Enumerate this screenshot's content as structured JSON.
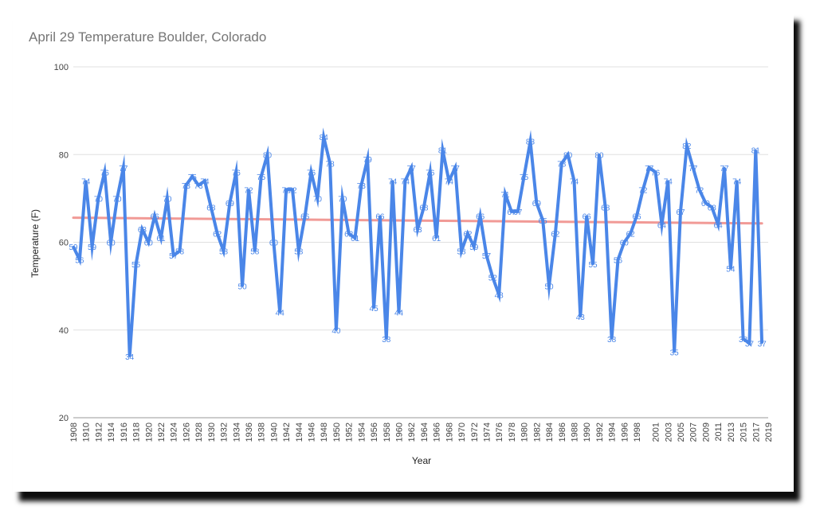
{
  "chart_data": {
    "type": "line",
    "title": "April 29 Temperature Boulder, Colorado",
    "xlabel": "Year",
    "ylabel": "Temperature (F)",
    "ylim": [
      20,
      100
    ],
    "yticks": [
      20,
      40,
      60,
      80,
      100
    ],
    "xlim": [
      1908,
      2019
    ],
    "xtick_labels": [
      "1908",
      "1910",
      "1912",
      "1914",
      "1916",
      "1918",
      "1920",
      "1922",
      "1924",
      "1926",
      "1928",
      "1930",
      "1932",
      "1934",
      "1936",
      "1938",
      "1940",
      "1942",
      "1944",
      "1946",
      "1948",
      "1950",
      "1952",
      "1954",
      "1956",
      "1958",
      "1960",
      "1962",
      "1964",
      "1966",
      "1968",
      "1970",
      "1972",
      "1974",
      "1976",
      "1978",
      "1980",
      "1982",
      "1984",
      "1986",
      "1988",
      "1990",
      "1992",
      "1994",
      "1996",
      "1998",
      "2001",
      "2003",
      "2005",
      "2007",
      "2009",
      "2011",
      "2013",
      "2015",
      "2017",
      "2019"
    ],
    "grid": true,
    "series": [
      {
        "color": "#4a86e8",
        "points": [
          [
            1908,
            59
          ],
          [
            1909,
            56
          ],
          [
            1910,
            74
          ],
          [
            1911,
            59
          ],
          [
            1912,
            70
          ],
          [
            1913,
            76
          ],
          [
            1914,
            60
          ],
          [
            1915,
            70
          ],
          [
            1916,
            77
          ],
          [
            1917,
            34
          ],
          [
            1918,
            55
          ],
          [
            1919,
            63
          ],
          [
            1920,
            60
          ],
          [
            1921,
            66
          ],
          [
            1922,
            61
          ],
          [
            1923,
            70
          ],
          [
            1924,
            57
          ],
          [
            1925,
            58
          ],
          [
            1926,
            73
          ],
          [
            1927,
            75
          ],
          [
            1928,
            73
          ],
          [
            1929,
            74
          ],
          [
            1930,
            68
          ],
          [
            1931,
            62
          ],
          [
            1932,
            58
          ],
          [
            1933,
            69
          ],
          [
            1934,
            76
          ],
          [
            1935,
            50
          ],
          [
            1936,
            72
          ],
          [
            1937,
            58
          ],
          [
            1938,
            75
          ],
          [
            1939,
            80
          ],
          [
            1940,
            60
          ],
          [
            1941,
            44
          ],
          [
            1942,
            72
          ],
          [
            1943,
            72
          ],
          [
            1944,
            58
          ],
          [
            1945,
            66
          ],
          [
            1946,
            76
          ],
          [
            1947,
            70
          ],
          [
            1948,
            84
          ],
          [
            1949,
            78
          ],
          [
            1950,
            40
          ],
          [
            1951,
            70
          ],
          [
            1952,
            62
          ],
          [
            1953,
            61
          ],
          [
            1954,
            73
          ],
          [
            1955,
            79
          ],
          [
            1956,
            45
          ],
          [
            1957,
            66
          ],
          [
            1958,
            38
          ],
          [
            1959,
            74
          ],
          [
            1960,
            44
          ],
          [
            1961,
            74
          ],
          [
            1962,
            77
          ],
          [
            1963,
            63
          ],
          [
            1964,
            68
          ],
          [
            1965,
            76
          ],
          [
            1966,
            61
          ],
          [
            1967,
            81
          ],
          [
            1968,
            74
          ],
          [
            1969,
            77
          ],
          [
            1970,
            58
          ],
          [
            1971,
            62
          ],
          [
            1972,
            59
          ],
          [
            1973,
            66
          ],
          [
            1974,
            57
          ],
          [
            1975,
            52
          ],
          [
            1976,
            48
          ],
          [
            1977,
            71
          ],
          [
            1978,
            67
          ],
          [
            1979,
            67
          ],
          [
            1980,
            75
          ],
          [
            1981,
            83
          ],
          [
            1982,
            69
          ],
          [
            1983,
            65
          ],
          [
            1984,
            50
          ],
          [
            1985,
            62
          ],
          [
            1986,
            78
          ],
          [
            1987,
            80
          ],
          [
            1988,
            74
          ],
          [
            1989,
            43
          ],
          [
            1990,
            66
          ],
          [
            1991,
            55
          ],
          [
            1992,
            80
          ],
          [
            1993,
            68
          ],
          [
            1994,
            38
          ],
          [
            1995,
            56
          ],
          [
            1996,
            60
          ],
          [
            1997,
            62
          ],
          [
            1998,
            66
          ],
          [
            1999,
            72
          ],
          [
            2000,
            77
          ],
          [
            2001,
            76
          ],
          [
            2002,
            64
          ],
          [
            2003,
            74
          ],
          [
            2004,
            35
          ],
          [
            2005,
            67
          ],
          [
            2006,
            82
          ],
          [
            2007,
            77
          ],
          [
            2008,
            72
          ],
          [
            2009,
            69
          ],
          [
            2010,
            68
          ],
          [
            2011,
            64
          ],
          [
            2012,
            77
          ],
          [
            2013,
            54
          ],
          [
            2014,
            74
          ],
          [
            2015,
            38
          ],
          [
            2016,
            37
          ],
          [
            2017,
            81
          ],
          [
            2018,
            37
          ]
        ]
      },
      {
        "color": "#f19a96",
        "type": "trendline",
        "points": [
          [
            1908,
            65.6
          ],
          [
            2018,
            64.3
          ]
        ]
      }
    ]
  }
}
